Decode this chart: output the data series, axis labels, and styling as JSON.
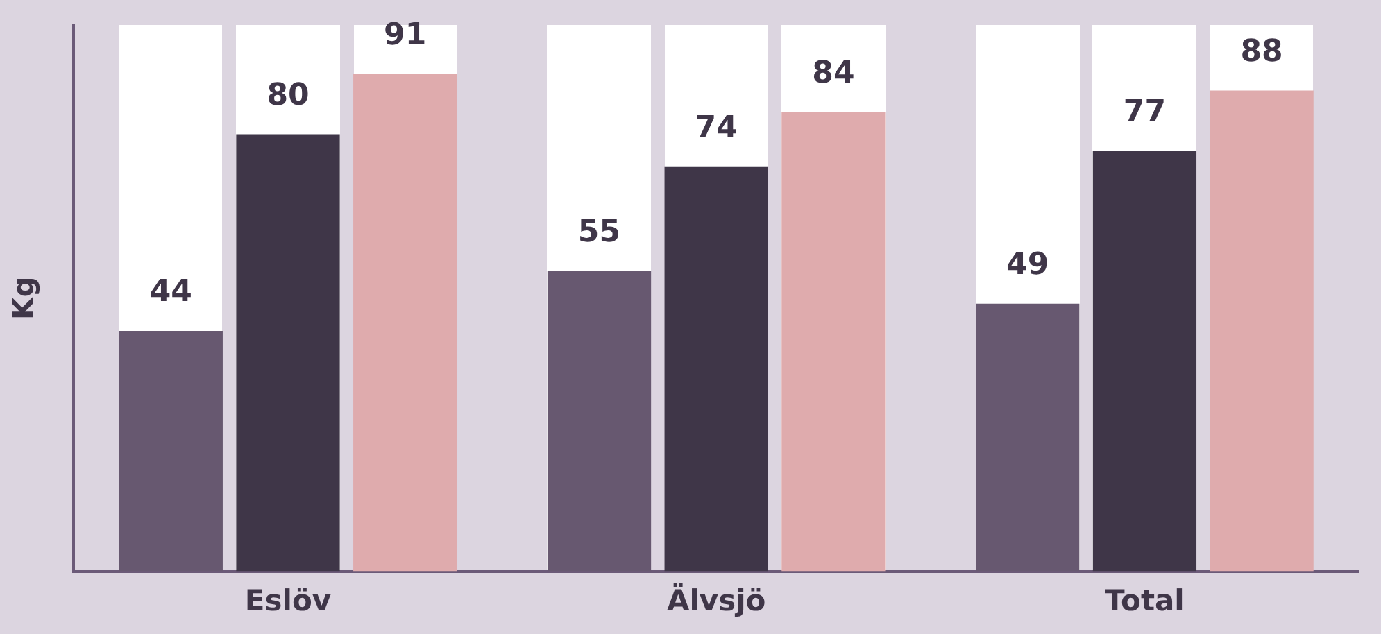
{
  "chart_data": {
    "type": "bar",
    "ylabel": "Kg",
    "categories": [
      "Eslöv",
      "Älvsjö",
      "Total"
    ],
    "series": [
      {
        "color": "#675870",
        "values": [
          44,
          55,
          49
        ]
      },
      {
        "color": "#3f3648",
        "values": [
          80,
          74,
          77
        ]
      },
      {
        "color": "#dfabad",
        "values": [
          91,
          84,
          88
        ]
      }
    ],
    "ylim": [
      0,
      100
    ],
    "tick_labels": "x",
    "data_labels": true,
    "grid": false,
    "legend": false
  }
}
